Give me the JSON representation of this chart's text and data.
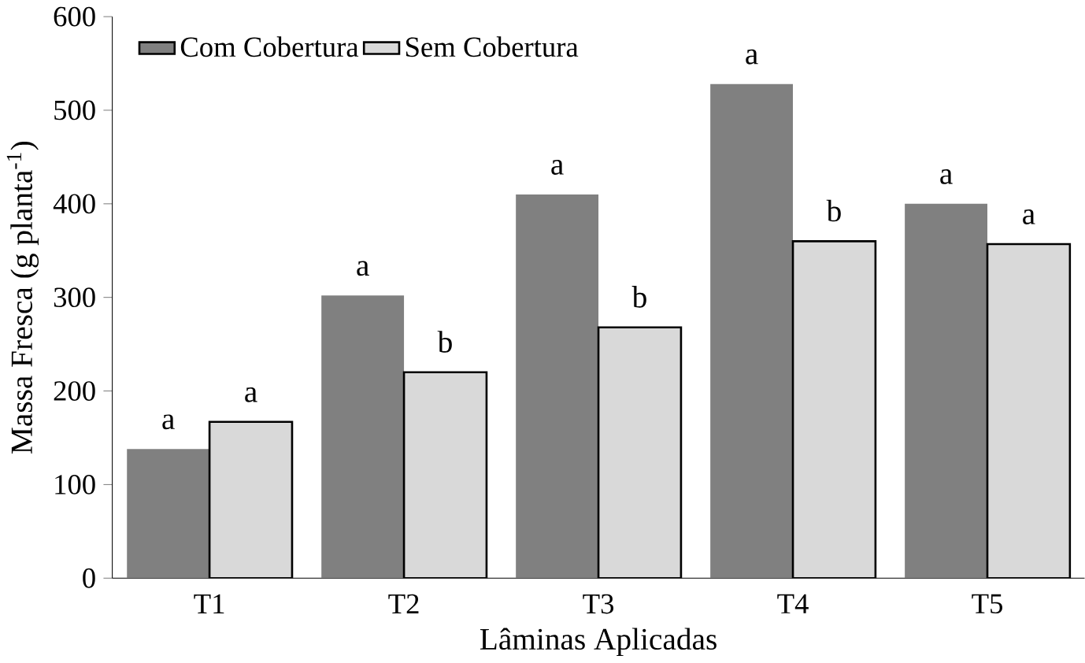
{
  "chart_data": {
    "type": "bar",
    "xlabel": "Lâminas Aplicadas",
    "ylabel": "Massa Fresca (g planta$^{-1}$)",
    "categories": [
      "T1",
      "T2",
      "T3",
      "T4",
      "T5"
    ],
    "series": [
      {
        "name": "Com Cobertura",
        "color": "#808080",
        "values": [
          138,
          302,
          410,
          528,
          400
        ],
        "value_labels": [
          "a",
          "a",
          "a",
          "a",
          "a"
        ]
      },
      {
        "name": "Sem Cobertura",
        "color": "#d9d9d9",
        "values": [
          167,
          220,
          268,
          360,
          357
        ],
        "value_labels": [
          "a",
          "b",
          "b",
          "b",
          "a"
        ]
      }
    ],
    "ylim": [
      0,
      600
    ],
    "yticks": [
      0,
      100,
      200,
      300,
      400,
      500,
      600
    ],
    "grid": false,
    "legend": "top left"
  }
}
